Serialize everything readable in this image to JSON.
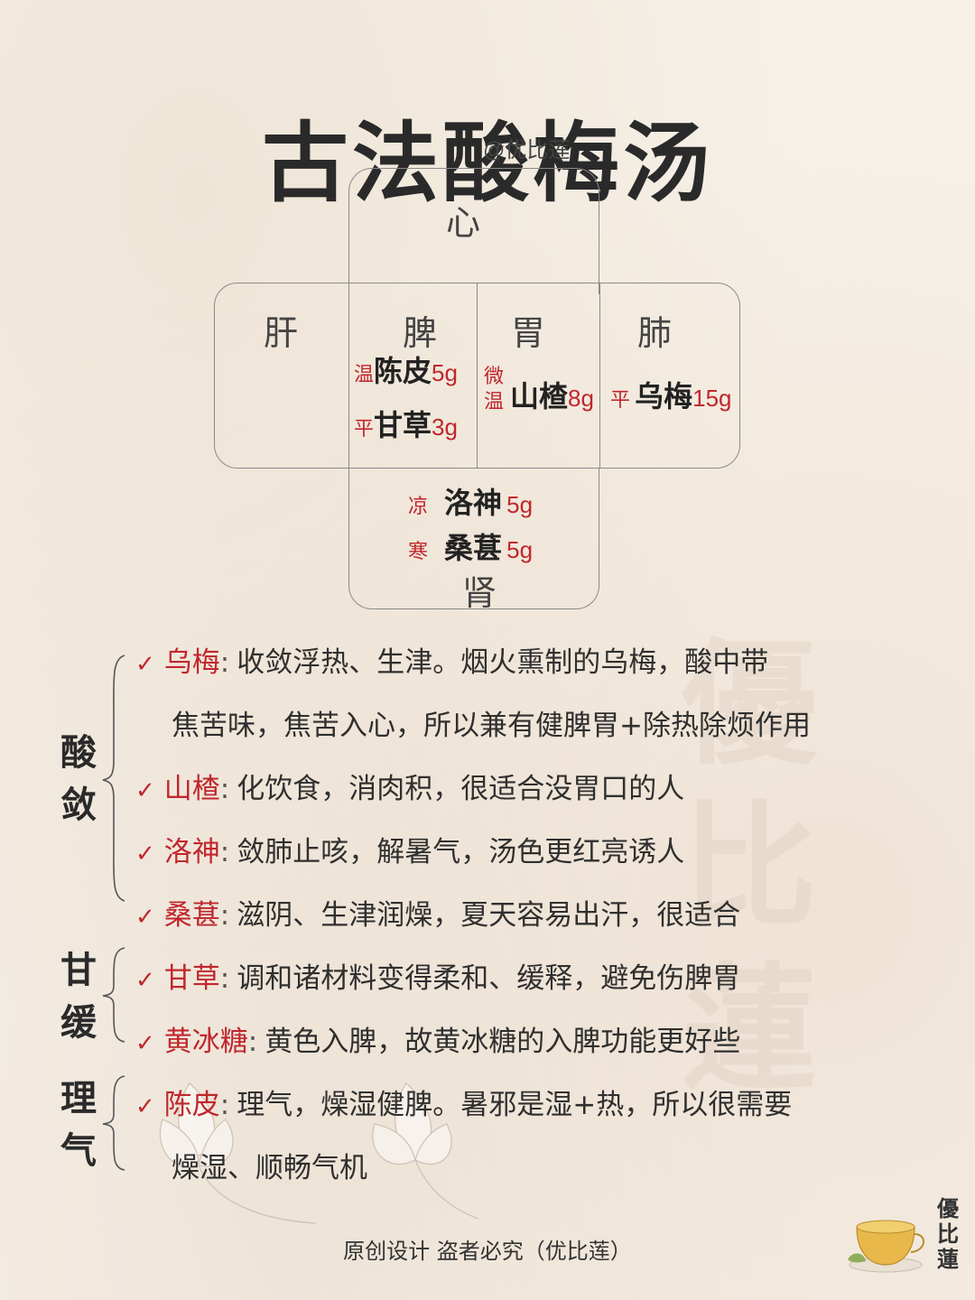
{
  "title": "古法酸梅汤",
  "handle": "@优比莲",
  "organs": {
    "heart": "心",
    "liver": "肝",
    "spleen": "脾",
    "stomach": "胃",
    "lung": "肺",
    "kidney": "肾"
  },
  "diagram_herbs": {
    "chenpi": {
      "nature": "温",
      "name": "陈皮",
      "dose": "5g"
    },
    "gancao": {
      "nature": "平",
      "name": "甘草",
      "dose": "3g"
    },
    "shanzha": {
      "nature_top": "微",
      "nature_bottom": "温",
      "name": "山楂",
      "dose": "8g"
    },
    "wumei": {
      "nature": "平",
      "name": "乌梅",
      "dose": "15g"
    },
    "luoshen": {
      "nature": "凉",
      "name": "洛神",
      "dose": "5g"
    },
    "sangshen": {
      "nature": "寒",
      "name": "桑葚",
      "dose": "5g"
    }
  },
  "groups": {
    "suanlian": [
      "酸",
      "敛"
    ],
    "ganhuan": [
      "甘",
      "缓"
    ],
    "liqi": [
      "理",
      "气"
    ]
  },
  "check_icon": "check-icon",
  "rows": [
    {
      "name": "乌梅",
      "colon": ":",
      "text": "收敛浮热、生津。烟火熏制的乌梅，酸中带",
      "cont": "焦苦味，焦苦入心，所以兼有健脾胃+除热除烦作用"
    },
    {
      "name": "山楂",
      "colon": ":",
      "text": "化饮食，消肉积，很适合没胃口的人"
    },
    {
      "name": "洛神",
      "colon": ":",
      "text": "敛肺止咳，解暑气，汤色更红亮诱人"
    },
    {
      "name": "桑葚",
      "colon": ":",
      "text": "滋阴、生津润燥，夏天容易出汗，很适合"
    },
    {
      "name": "甘草",
      "colon": ":",
      "text": "调和诸材料变得柔和、缓释，避免伤脾胃"
    },
    {
      "name": "黄冰糖",
      "colon": ":",
      "text": "黄色入脾，故黄冰糖的入脾功能更好些"
    },
    {
      "name": "陈皮",
      "colon": ":",
      "text": "理气，燥湿健脾。暑邪是湿+热，所以很需要",
      "cont": "燥湿、顺畅气机"
    }
  ],
  "footer": "原创设计 盗者必究（优比莲）",
  "seal": [
    "優",
    "比",
    "蓮"
  ],
  "watermark": [
    "優",
    "比",
    "蓮"
  ],
  "colors": {
    "accent": "#c0272d",
    "text": "#2a2a2a",
    "border": "#8a8a8a"
  }
}
